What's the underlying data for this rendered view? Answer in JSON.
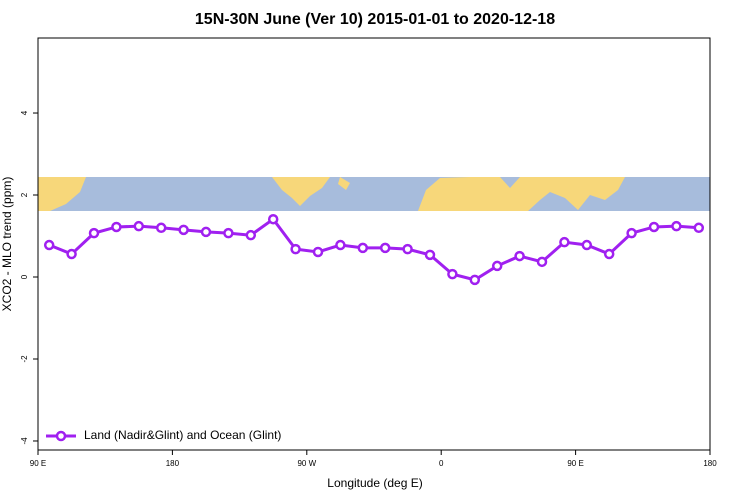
{
  "chart_data": {
    "type": "line",
    "title": "15N-30N June (Ver 10)   2015-01-01 to 2020-12-18",
    "x_label": "Longitude (deg E)",
    "y_label": "XCO2 - MLO trend (ppm)",
    "xlim": [
      90,
      540
    ],
    "xticks": [
      {
        "value": 90,
        "label": "90 E"
      },
      180,
      {
        "value": 270,
        "label": "90 W"
      },
      {
        "value": 360,
        "label": "0"
      },
      {
        "value": 450,
        "label": "90 E"
      },
      {
        "value": 540,
        "label": "180"
      }
    ],
    "ylim": [
      -4.22,
      5.83
    ],
    "yticks": [
      -4,
      -2,
      0,
      2,
      4
    ],
    "legend": "lower left",
    "series": [
      {
        "name": "Land (Nadir&Glint) and Ocean (Glint)",
        "color": "#a020f0",
        "x": [
          97.5,
          112.5,
          127.5,
          142.5,
          157.5,
          172.5,
          187.5,
          202.5,
          217.5,
          232.5,
          247.5,
          262.5,
          277.5,
          292.5,
          307.5,
          322.5,
          337.5,
          352.5,
          367.5,
          382.5,
          397.5,
          412.5,
          427.5,
          442.5,
          457.5,
          472.5,
          487.5,
          502.5,
          517.5,
          532.5
        ],
        "values": [
          0.78,
          0.56,
          1.07,
          1.22,
          1.24,
          1.2,
          1.15,
          1.1,
          1.07,
          1.02,
          1.41,
          0.68,
          0.61,
          0.78,
          0.71,
          0.71,
          0.68,
          0.54,
          0.07,
          -0.07,
          0.27,
          0.51,
          0.37,
          0.85,
          0.78,
          0.56,
          1.07,
          1.22,
          1.24,
          1.2
        ]
      }
    ]
  }
}
